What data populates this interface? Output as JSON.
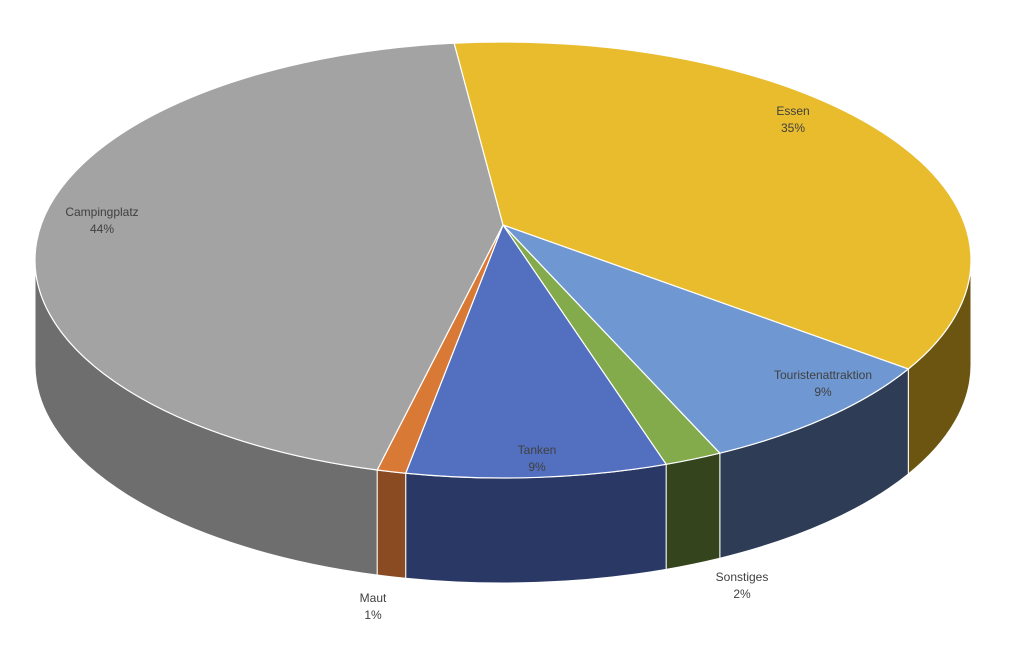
{
  "chart_data": {
    "type": "pie",
    "categories": [
      "Essen",
      "Touristenattraktion",
      "Sonstiges",
      "Tanken",
      "Maut",
      "Campingplatz"
    ],
    "values": [
      35,
      9,
      2,
      9,
      1,
      44
    ],
    "value_labels": [
      "35%",
      "9%",
      "2%",
      "9%",
      "1%",
      "44%"
    ],
    "colors": [
      "#E9BC2E",
      "#6F98D2",
      "#83AB4C",
      "#5270BF",
      "#D87A36",
      "#A3A3A3"
    ],
    "side_colors": [
      "#6B5510",
      "#2E3D55",
      "#34451E",
      "#2A3866",
      "#8A4A22",
      "#6E6E6E"
    ]
  }
}
